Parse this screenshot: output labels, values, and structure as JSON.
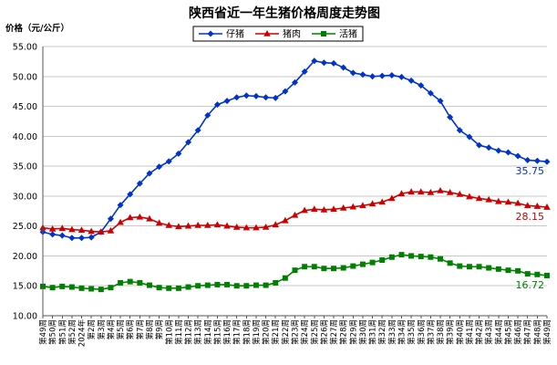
{
  "chart_data": {
    "type": "line",
    "title": "陕西省近一年生猪价格周度走势图",
    "ylabel": "价格（元/公斤）",
    "xlabel": "",
    "ylim": [
      10,
      55
    ],
    "yticks": [
      "10.00",
      "15.00",
      "20.00",
      "25.00",
      "30.00",
      "35.00",
      "40.00",
      "45.00",
      "50.00",
      "55.00"
    ],
    "grid": true,
    "legend_position": "top",
    "categories": [
      "第49周",
      "第50周",
      "第51周",
      "第52周",
      "2024年",
      "第2周",
      "第3周",
      "第4周",
      "第5周",
      "第6周",
      "第7周",
      "第8周",
      "第9周",
      "第10周",
      "第11周",
      "第12周",
      "第13周",
      "第14周",
      "第15周",
      "第16周",
      "第17周",
      "第18周",
      "第19周",
      "第20周",
      "第21周",
      "第22周",
      "第23周",
      "第24周",
      "第25周",
      "第26周",
      "第27周",
      "第28周",
      "第29周",
      "第30周",
      "第31周",
      "第32周",
      "第33周",
      "第34周",
      "第35周",
      "第36周",
      "第37周",
      "第38周",
      "第39周",
      "第40周",
      "第41周",
      "第42周",
      "第43周",
      "第44周",
      "第45周",
      "第46周",
      "第47周",
      "第48周",
      "第49周"
    ],
    "series": [
      {
        "name": "仔猪",
        "color": "#0033cc",
        "marker": "diamond",
        "end_label": "35.75",
        "values": [
          24.0,
          23.6,
          23.4,
          23.0,
          23.0,
          23.1,
          24.0,
          26.2,
          28.5,
          30.3,
          32.1,
          33.8,
          34.9,
          35.8,
          37.1,
          39.0,
          41.0,
          43.5,
          45.3,
          45.9,
          46.5,
          46.8,
          46.7,
          46.5,
          46.4,
          47.5,
          49.0,
          50.8,
          52.6,
          52.3,
          52.2,
          51.5,
          50.6,
          50.3,
          50.0,
          50.1,
          50.2,
          49.9,
          49.3,
          48.5,
          47.2,
          45.9,
          43.2,
          41.0,
          39.9,
          38.5,
          38.1,
          37.6,
          37.3,
          36.7,
          36.0,
          35.9,
          35.75
        ]
      },
      {
        "name": "猪肉",
        "color": "#cc0000",
        "marker": "triangle",
        "end_label": "28.15",
        "values": [
          24.7,
          24.5,
          24.6,
          24.4,
          24.3,
          24.1,
          24.0,
          24.2,
          25.6,
          26.4,
          26.5,
          26.2,
          25.5,
          25.1,
          24.9,
          25.0,
          25.1,
          25.1,
          25.2,
          25.0,
          24.8,
          24.7,
          24.7,
          24.8,
          25.2,
          25.9,
          26.8,
          27.6,
          27.8,
          27.7,
          27.8,
          28.0,
          28.2,
          28.4,
          28.7,
          29.0,
          29.6,
          30.4,
          30.7,
          30.7,
          30.6,
          30.9,
          30.6,
          30.3,
          29.9,
          29.6,
          29.4,
          29.1,
          29.0,
          28.8,
          28.4,
          28.3,
          28.15
        ]
      },
      {
        "name": "活猪",
        "color": "#008000",
        "marker": "square",
        "end_label": "16.72",
        "values": [
          14.9,
          14.7,
          14.9,
          14.8,
          14.6,
          14.5,
          14.4,
          14.7,
          15.5,
          15.7,
          15.5,
          15.1,
          14.7,
          14.6,
          14.6,
          14.8,
          15.0,
          15.1,
          15.2,
          15.2,
          15.0,
          15.0,
          15.1,
          15.1,
          15.5,
          16.3,
          17.6,
          18.2,
          18.2,
          17.9,
          17.9,
          18.0,
          18.3,
          18.6,
          18.9,
          19.3,
          19.8,
          20.2,
          20.0,
          19.9,
          19.8,
          19.5,
          18.8,
          18.3,
          18.2,
          18.2,
          18.0,
          17.8,
          17.6,
          17.5,
          17.0,
          16.9,
          16.72
        ]
      }
    ]
  }
}
